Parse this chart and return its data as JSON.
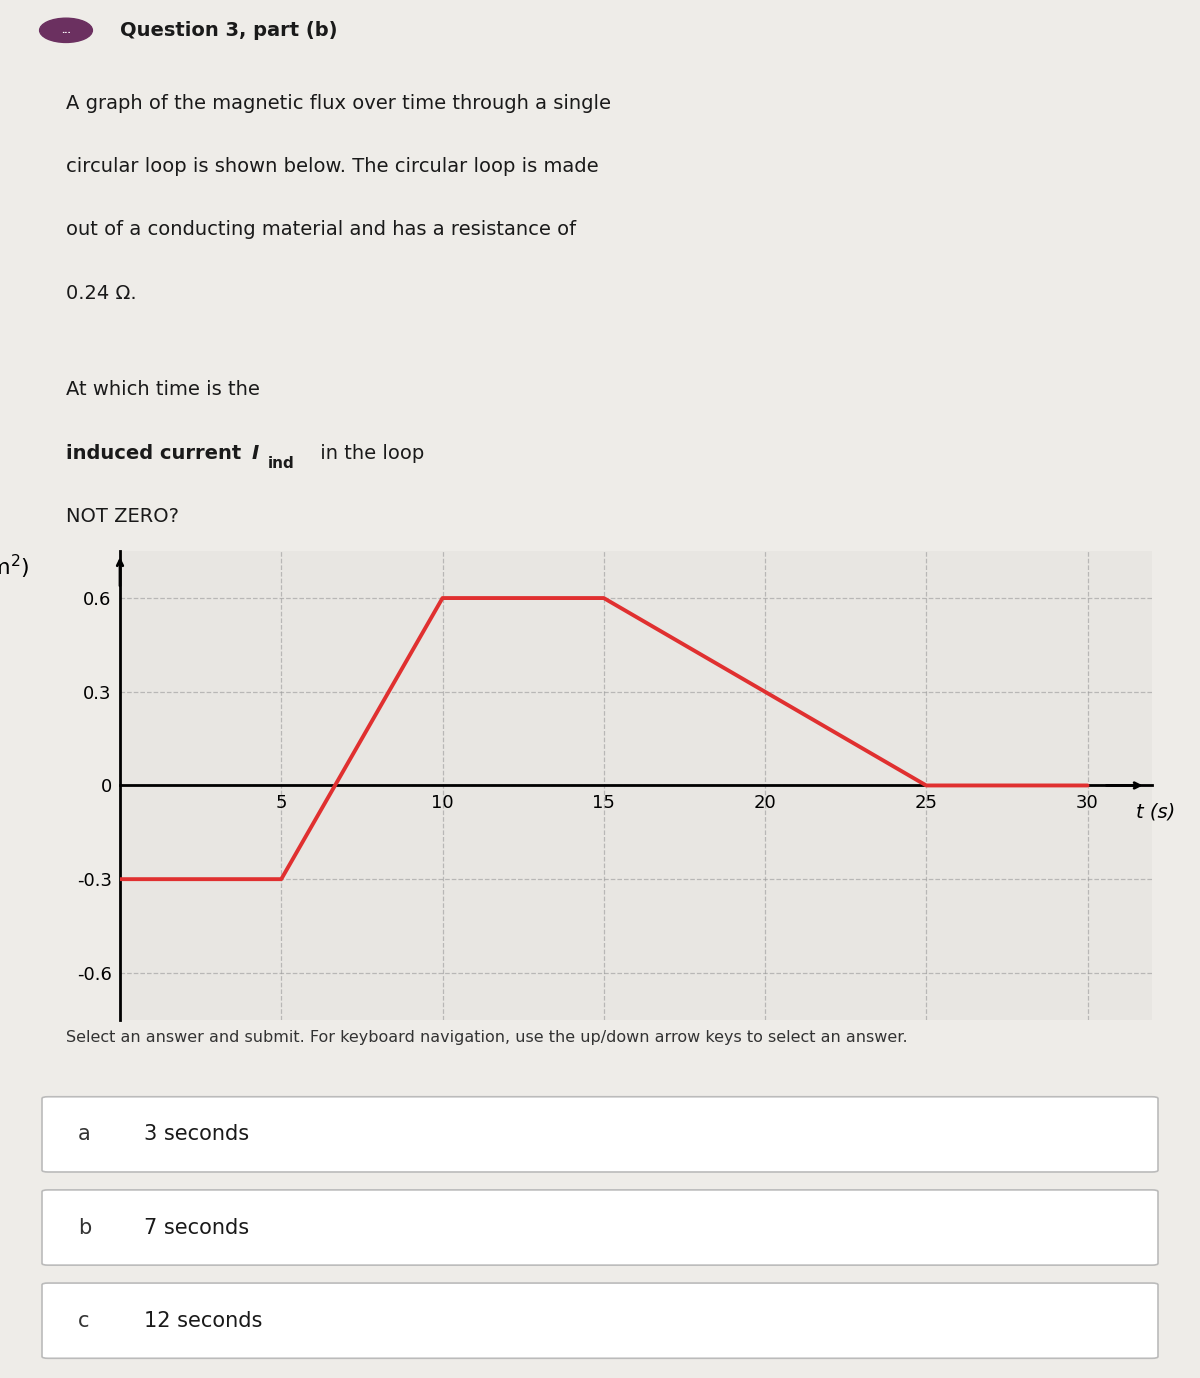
{
  "title": "Question 3, part (b)",
  "description_lines": [
    "A graph of the magnetic flux over time through a single",
    "circular loop is shown below. The circular loop is made",
    "out of a conducting material and has a resistance of",
    "0.24 Ω."
  ],
  "question_part1": "At which time is the ",
  "question_bold_part": "induced current ",
  "question_I": "I",
  "question_sub": "ind",
  "question_after_I": " in the loop",
  "question_last": "NOT ZERO?",
  "graph_xlabel": "t (s)",
  "xlim": [
    0,
    32
  ],
  "ylim": [
    -0.75,
    0.75
  ],
  "xticks": [
    5,
    10,
    15,
    20,
    25,
    30
  ],
  "yticks": [
    -0.6,
    -0.3,
    0,
    0.3,
    0.6
  ],
  "line_x": [
    0,
    5,
    10,
    15,
    25,
    30
  ],
  "line_y": [
    -0.3,
    -0.3,
    0.6,
    0.6,
    0.0,
    0.0
  ],
  "line_color": "#e03030",
  "line_width": 2.8,
  "grid_color": "#999999",
  "grid_alpha": 0.6,
  "background_color": "#eeece8",
  "plot_bg_color": "#e8e6e2",
  "select_text": "Select an answer and submit. For keyboard navigation, use the up/down arrow keys to select an answer.",
  "choices": [
    {
      "label": "a",
      "text": "3 seconds"
    },
    {
      "label": "b",
      "text": "7 seconds"
    },
    {
      "label": "c",
      "text": "12 seconds"
    }
  ],
  "header_icon_color": "#6b3060",
  "title_fontsize": 14,
  "body_fontsize": 14,
  "axis_fontsize": 14,
  "tick_fontsize": 13,
  "choice_fontsize": 15
}
